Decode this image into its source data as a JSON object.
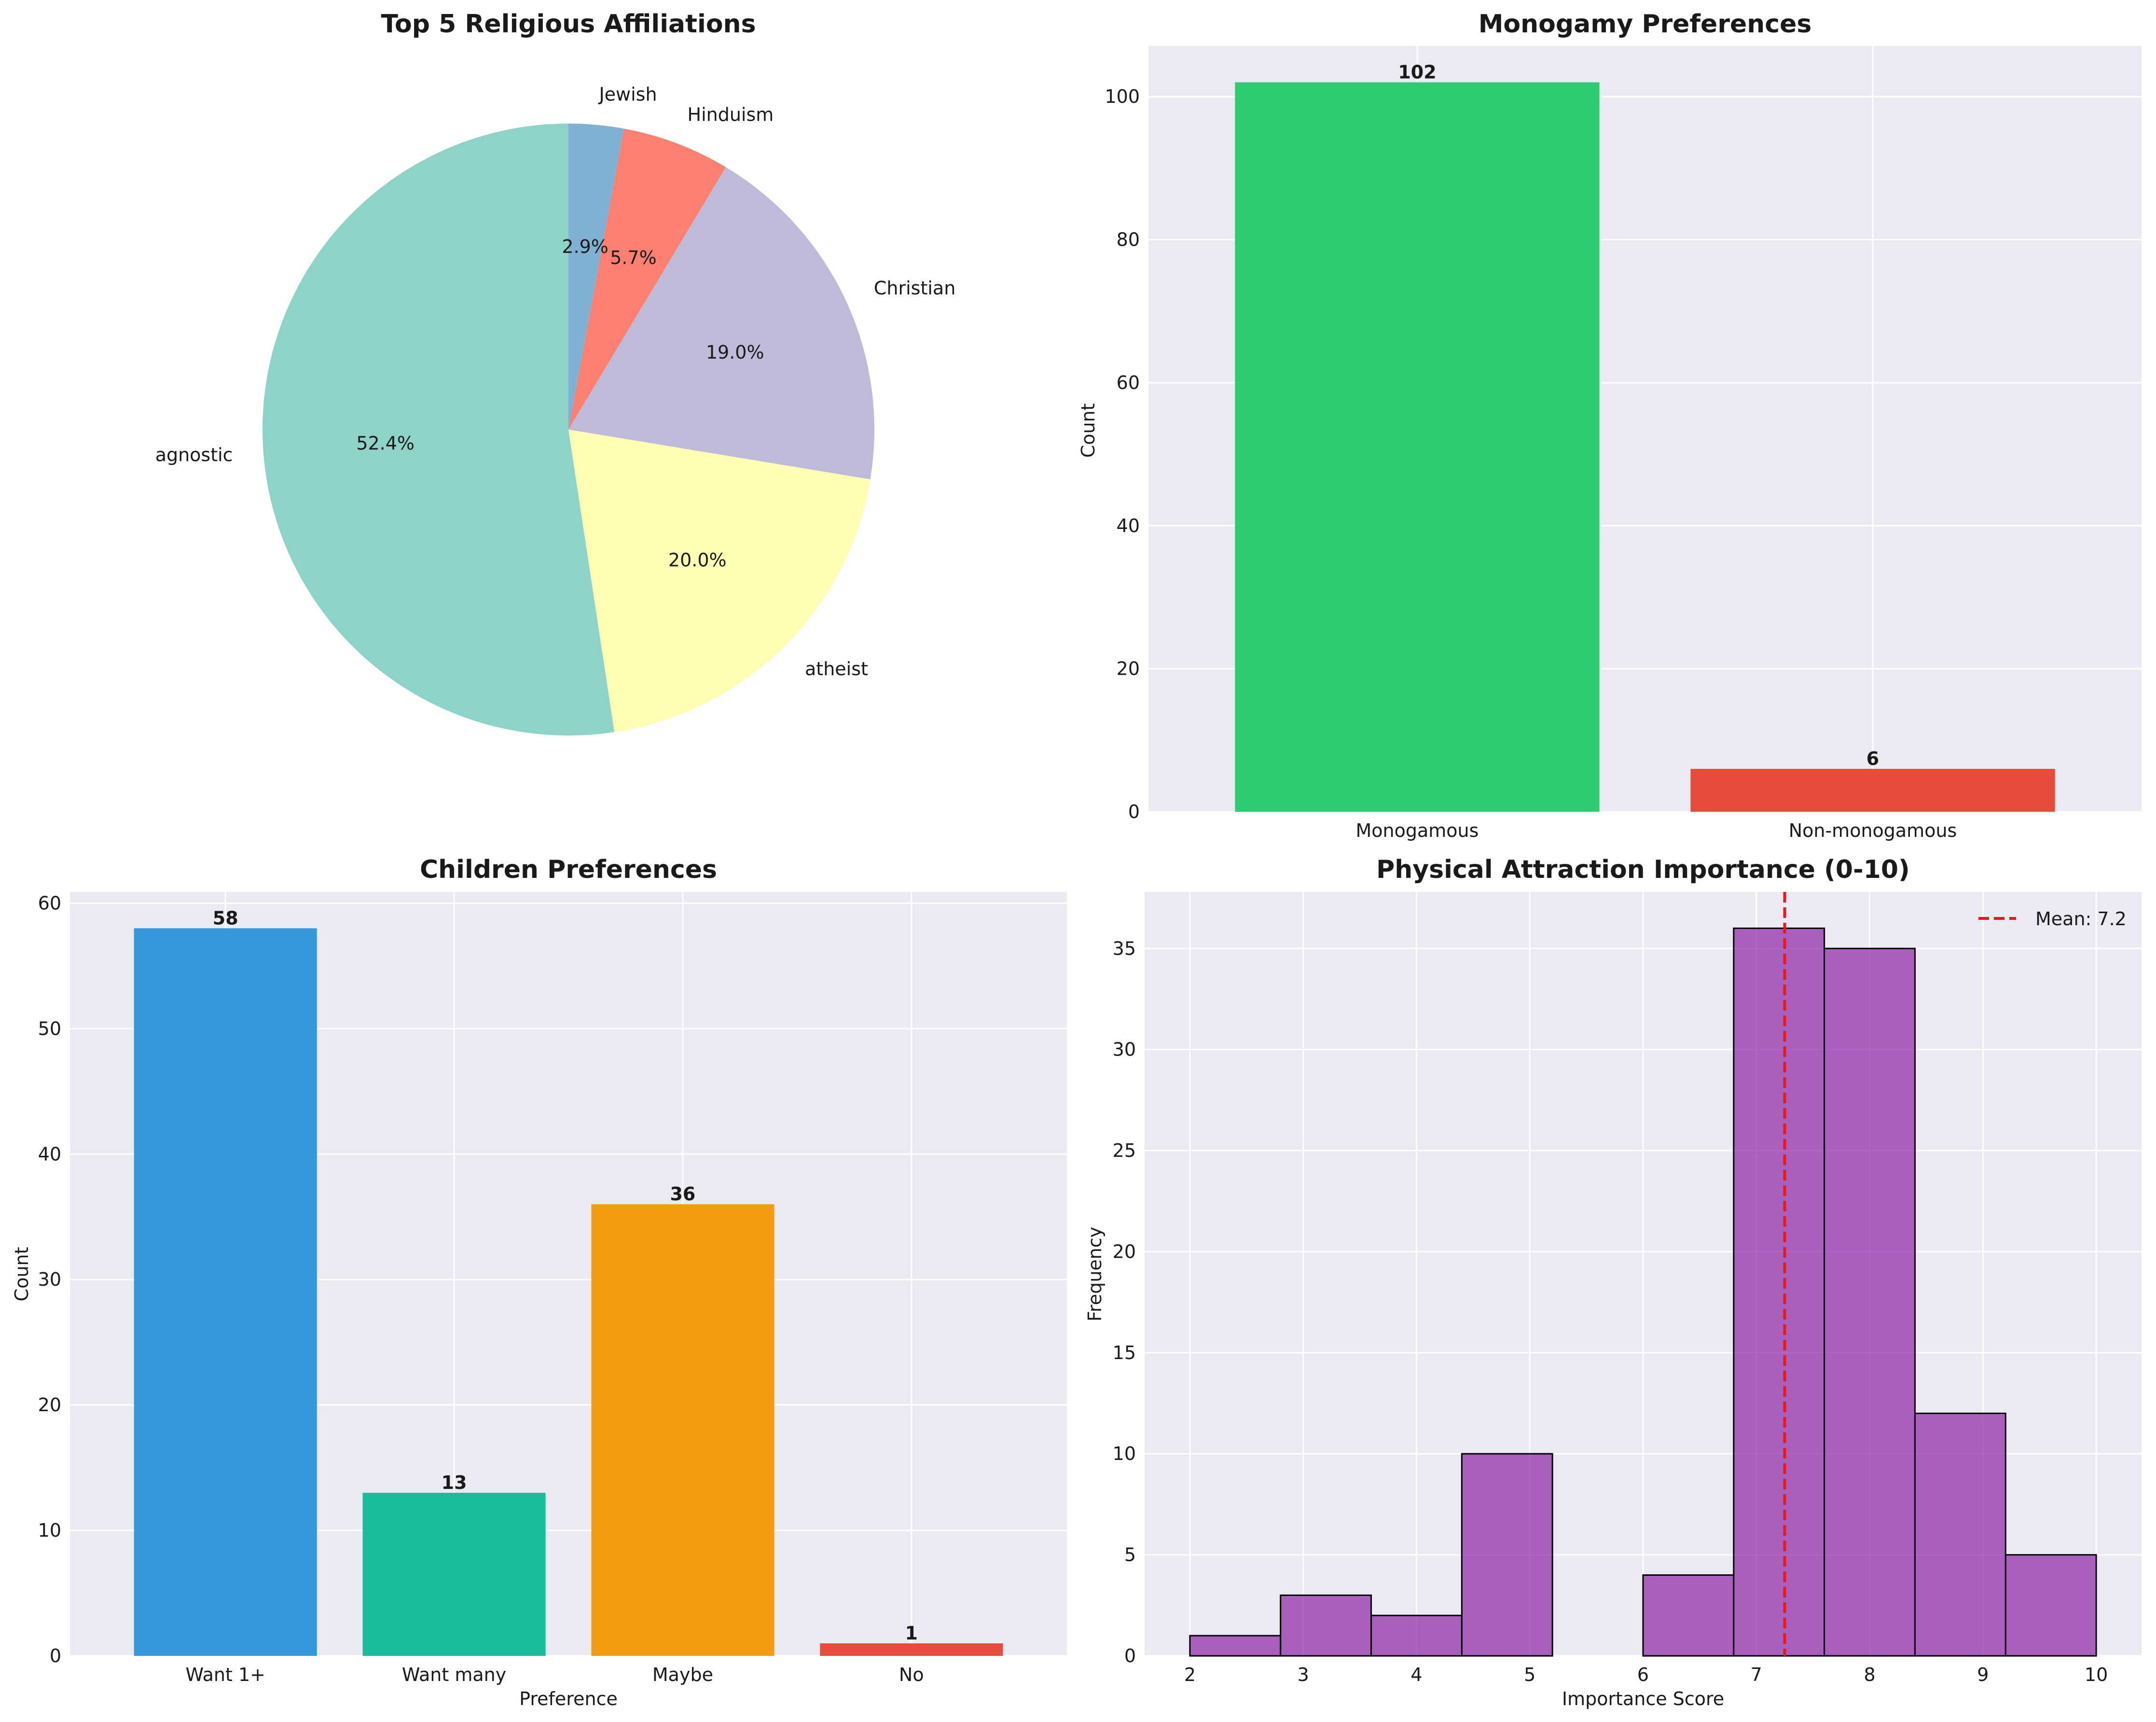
{
  "chart_data": [
    {
      "type": "pie",
      "title": "Top 5 Religious Affiliations",
      "labels": [
        "agnostic",
        "atheist",
        "Christian",
        "Hinduism",
        "Jewish"
      ],
      "percent_labels": [
        "52.4%",
        "20.0%",
        "19.0%",
        "5.7%",
        "2.9%"
      ],
      "values": [
        52.4,
        20.0,
        19.0,
        5.7,
        2.9
      ],
      "colors": [
        "#8dd3c7",
        "#ffffb3",
        "#bebada",
        "#fb8072",
        "#80b1d3"
      ],
      "start_angle": 90,
      "direction": "counterclockwise"
    },
    {
      "type": "bar",
      "title": "Monogamy Preferences",
      "categories": [
        "Monogamous",
        "Non-monogamous"
      ],
      "values": [
        102,
        6
      ],
      "value_labels": [
        "102",
        "6"
      ],
      "colors": [
        "#2ecc71",
        "#e74c3c"
      ],
      "xlabel": "",
      "ylabel": "Count",
      "ylim": [
        0,
        107.1
      ],
      "yticks": [
        "0",
        "20",
        "40",
        "60",
        "80",
        "100"
      ]
    },
    {
      "type": "bar",
      "title": "Children Preferences",
      "categories": [
        "Want 1+",
        "Want many",
        "Maybe",
        "No"
      ],
      "values": [
        58,
        13,
        36,
        1
      ],
      "value_labels": [
        "58",
        "13",
        "36",
        "1"
      ],
      "colors": [
        "#3498db",
        "#1abc9c",
        "#f39c12",
        "#e74c3c"
      ],
      "xlabel": "Preference",
      "ylabel": "Count",
      "ylim": [
        0,
        60.9
      ],
      "yticks": [
        "0",
        "10",
        "20",
        "30",
        "40",
        "50",
        "60"
      ]
    },
    {
      "type": "histogram",
      "title": "Physical Attraction Importance (0-10)",
      "bin_edges": [
        2.0,
        2.8,
        3.6,
        4.4,
        5.2,
        6.0,
        6.8,
        7.6,
        8.4,
        9.2,
        10.0
      ],
      "counts": [
        1,
        3,
        2,
        10,
        0,
        4,
        36,
        35,
        12,
        5
      ],
      "color": "#8e24aa",
      "xlabel": "Importance Score",
      "ylabel": "Frequency",
      "xlim": [
        1.6,
        10.4
      ],
      "ylim": [
        0,
        37.8
      ],
      "xticks": [
        "2",
        "3",
        "4",
        "5",
        "6",
        "7",
        "8",
        "9",
        "10"
      ],
      "yticks": [
        "0",
        "5",
        "10",
        "15",
        "20",
        "25",
        "30",
        "35"
      ],
      "mean": 7.25,
      "mean_color": "#e41a1c",
      "legend": "Mean: 7.2",
      "legend_position": "top-right"
    }
  ]
}
